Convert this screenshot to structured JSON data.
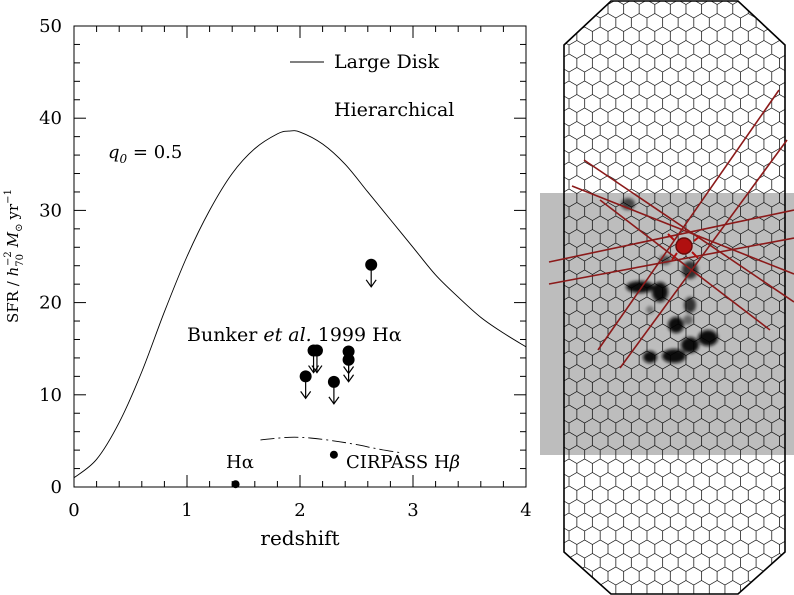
{
  "chart_data": {
    "type": "scatter",
    "xlabel": "redshift",
    "ylabel": "SFR / h70^-2 M⊙ yr^-1",
    "ylabel_parts": {
      "pre": "SFR / ",
      "h": "h",
      "exp": "−2",
      "sub": "70",
      "M": "M",
      "sun": "⊙",
      "yr": "yr",
      "yexp": "−1"
    },
    "xlim": [
      0,
      4
    ],
    "ylim": [
      0,
      50
    ],
    "x_ticks": [
      "0",
      "1",
      "2",
      "3",
      "4"
    ],
    "y_ticks": [
      "0",
      "10",
      "20",
      "30",
      "40",
      "50"
    ],
    "series": [
      {
        "name": "Large Disk",
        "style": "solid",
        "x": [
          0.0,
          0.2,
          0.4,
          0.6,
          0.8,
          1.0,
          1.2,
          1.4,
          1.6,
          1.8,
          1.9,
          2.0,
          2.2,
          2.4,
          2.6,
          2.8,
          3.0,
          3.2,
          3.4,
          3.6,
          3.8,
          4.0
        ],
        "y": [
          1.0,
          3.0,
          7.0,
          12.5,
          19.0,
          25.0,
          30.0,
          34.0,
          36.7,
          38.3,
          38.6,
          38.5,
          37.2,
          35.0,
          32.0,
          29.0,
          26.0,
          23.0,
          20.6,
          18.4,
          16.7,
          15.2
        ]
      },
      {
        "name": "Hierarchical",
        "style": "dashdot",
        "x": [
          1.65,
          1.8,
          1.95,
          2.1,
          2.3,
          2.5,
          2.7,
          2.9
        ],
        "y": [
          5.1,
          5.3,
          5.4,
          5.3,
          5.0,
          4.6,
          4.1,
          3.7
        ]
      },
      {
        "name": "Bunker et al. 1999 Hα",
        "marker": "filled-circle-upper-limit",
        "x": [
          2.05,
          2.12,
          2.15,
          2.3,
          2.43,
          2.43,
          2.63
        ],
        "y": [
          12.0,
          14.8,
          14.8,
          11.4,
          14.7,
          13.8,
          24.1
        ]
      },
      {
        "name": "CIRPASS Hβ",
        "marker": "small-filled-circle",
        "x": [
          2.3
        ],
        "y": [
          3.5
        ]
      },
      {
        "name": "Hα",
        "marker": "small-filled-circle",
        "x": [
          1.43
        ],
        "y": [
          0.3
        ]
      }
    ],
    "annotations": {
      "legend_line_label": "Large Disk",
      "hierarchical_label": "Hierarchical",
      "q0_symbol": "q",
      "q0_sub": "0",
      "q0_value": " = 0.5",
      "bunker_pre": "Bunker ",
      "bunker_etal": "et al.",
      "bunker_post": " 1999 Hα",
      "cirpass_pre": "CIRPASS H",
      "cirpass_beta": "β",
      "halpha_label": "Hα"
    }
  },
  "ifu_panel": {
    "image_description_name": "ifu-galaxy-image",
    "fibre_color": "#8b1a1a",
    "lens_color": "#000000"
  }
}
